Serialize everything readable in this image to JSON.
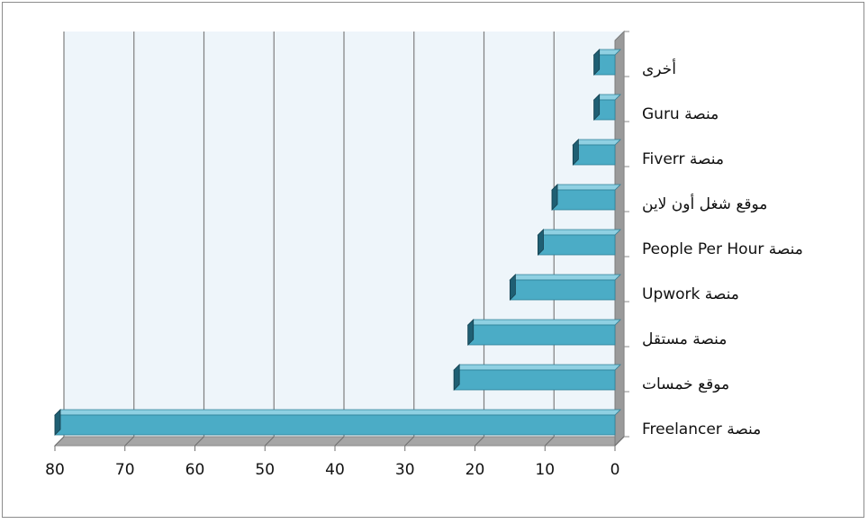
{
  "chart_data": {
    "type": "bar",
    "orientation": "horizontal",
    "style": "3d",
    "x_reversed": true,
    "categories": [
      "منصة Freelancer",
      "موقع خمسات",
      "منصة  مستقل",
      "منصة Upwork",
      "منصة People Per Hour",
      "موقع شغل أون لاين",
      "منصة Fiverr",
      "منصة Guru",
      "أخرى"
    ],
    "values": [
      80,
      23,
      21,
      15,
      11,
      9,
      6,
      3,
      3
    ],
    "xlim": [
      0,
      80
    ],
    "x_ticks": [
      0,
      10,
      20,
      30,
      40,
      50,
      60,
      70,
      80
    ],
    "x_tick_labels": [
      "0",
      "10",
      "20",
      "30",
      "40",
      "50",
      "60",
      "70",
      "80"
    ],
    "grid": true,
    "legend": "none",
    "colors": {
      "bar_front": "#4bacc6",
      "bar_top": "#8fd0e2",
      "bar_dark": "#1f5f73",
      "wall": "#eef5fa",
      "grid": "#7f7f7f",
      "floor": "#a6a6a6"
    }
  }
}
